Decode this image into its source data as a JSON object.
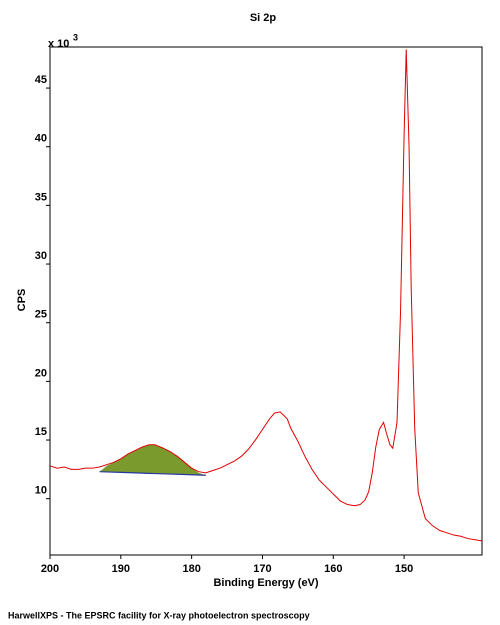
{
  "chart_data": {
    "type": "line",
    "title": "Si 2p",
    "x_label": "Binding Energy (eV)",
    "y_label": "CPS",
    "y_multiplier": "x 10",
    "y_multiplier_exp": "3",
    "xlim": [
      200,
      139
    ],
    "ylim": [
      5.2,
      48.5
    ],
    "xticks": [
      200,
      190,
      180,
      170,
      160,
      150
    ],
    "yticks": [
      10,
      15,
      20,
      25,
      30,
      35,
      40,
      45
    ],
    "spectrum": {
      "color": "#e00000",
      "x": [
        200,
        199,
        198,
        197,
        196,
        195,
        194,
        193,
        192,
        191,
        190,
        189,
        188,
        187,
        186,
        185.2,
        184,
        183,
        182,
        181,
        180,
        179,
        178,
        177,
        176,
        175,
        174,
        173,
        172,
        171,
        170,
        169,
        168.3,
        167.5,
        166.5,
        166,
        165,
        164,
        163,
        162,
        161,
        160,
        159,
        158,
        157,
        156.2,
        155.5,
        155,
        154.5,
        154,
        153.5,
        152.9,
        152.5,
        152,
        151.6,
        151,
        150.5,
        150,
        149.7,
        149.3,
        149,
        148.5,
        148,
        147,
        146,
        145,
        144,
        143,
        142,
        141,
        140,
        139
      ],
      "values": [
        12.8,
        12.6,
        12.7,
        12.5,
        12.5,
        12.6,
        12.6,
        12.7,
        12.9,
        13.1,
        13.4,
        13.8,
        14.1,
        14.4,
        14.6,
        14.6,
        14.3,
        14.0,
        13.6,
        13.1,
        12.6,
        12.3,
        12.2,
        12.4,
        12.6,
        12.9,
        13.2,
        13.6,
        14.2,
        15.0,
        15.9,
        16.8,
        17.3,
        17.4,
        16.8,
        16.0,
        14.9,
        13.6,
        12.5,
        11.6,
        11.0,
        10.4,
        9.8,
        9.5,
        9.4,
        9.5,
        9.9,
        10.6,
        12.2,
        14.4,
        15.9,
        16.5,
        15.6,
        14.6,
        14.3,
        16.5,
        26,
        41,
        48.3,
        40,
        28,
        16,
        10.5,
        8.3,
        7.7,
        7.3,
        7.1,
        6.9,
        6.8,
        6.6,
        6.5,
        6.4
      ]
    },
    "component": {
      "color": "#7a9a2e",
      "baseline_color": "#2838a0",
      "x": [
        193,
        192,
        191,
        190,
        189,
        188,
        187,
        186,
        185.2,
        184,
        183,
        182,
        181,
        180,
        179,
        178
      ],
      "values": [
        12.3,
        12.8,
        13.1,
        13.4,
        13.8,
        14.1,
        14.4,
        14.6,
        14.6,
        14.3,
        14.0,
        13.6,
        13.1,
        12.6,
        12.2,
        12.0
      ],
      "background": [
        12.3,
        12.28,
        12.26,
        12.24,
        12.22,
        12.2,
        12.18,
        12.16,
        12.14,
        12.12,
        12.1,
        12.08,
        12.06,
        12.04,
        12.02,
        12.0
      ]
    }
  },
  "footer": "HarwellXPS - The EPSRC facility for X-ray photoelectron spectroscopy"
}
